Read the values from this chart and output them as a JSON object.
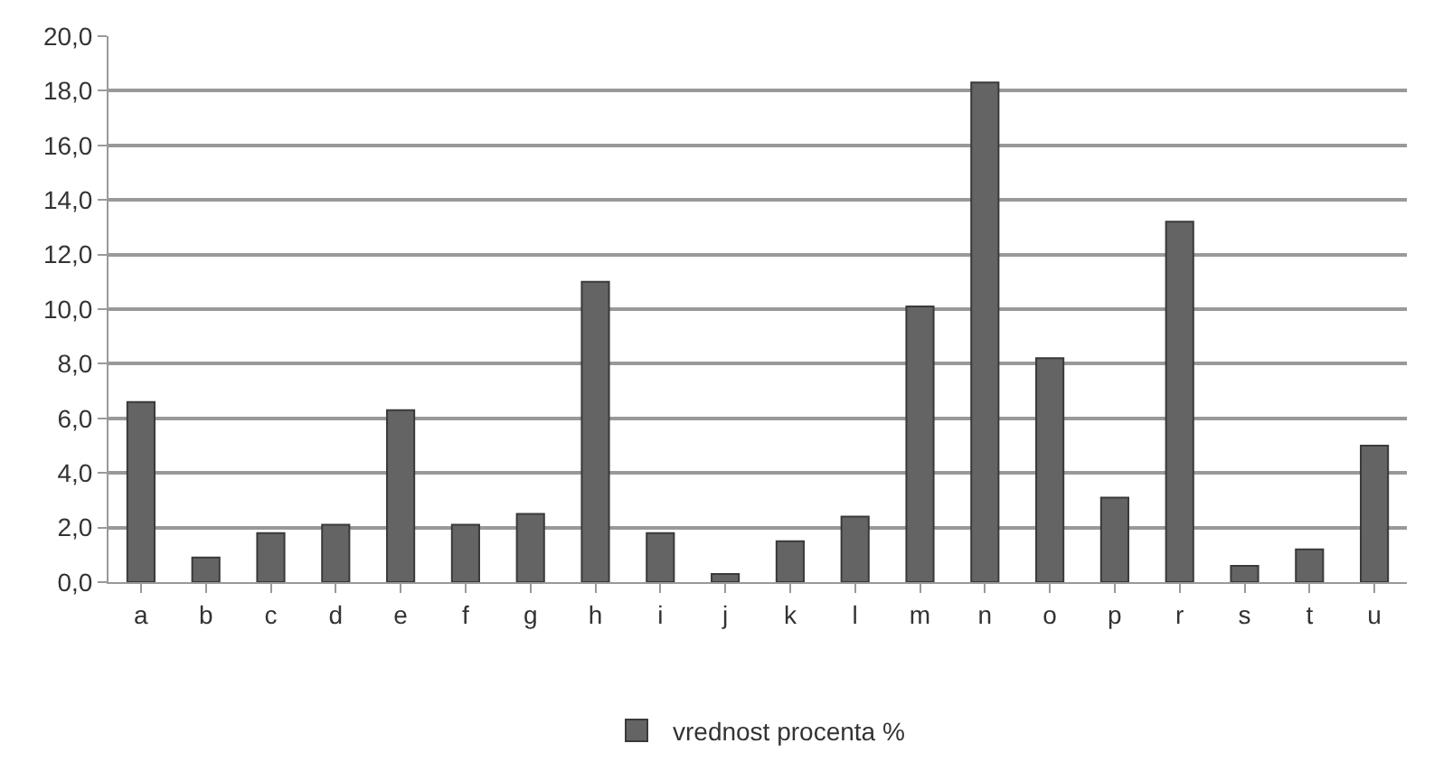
{
  "chart_data": {
    "type": "bar",
    "categories": [
      "a",
      "b",
      "c",
      "d",
      "e",
      "f",
      "g",
      "h",
      "i",
      "j",
      "k",
      "l",
      "m",
      "n",
      "o",
      "p",
      "r",
      "s",
      "t",
      "u"
    ],
    "series": [
      {
        "name": "vrednost procenta %",
        "color": "#646464",
        "values": [
          6.6,
          0.9,
          1.8,
          2.1,
          6.3,
          2.1,
          2.5,
          11.0,
          1.8,
          0.3,
          1.5,
          2.4,
          10.1,
          18.3,
          8.2,
          3.1,
          13.2,
          0.6,
          1.2,
          5.0
        ]
      }
    ],
    "ylim": [
      0,
      20
    ],
    "yticks": [
      {
        "value": 0,
        "label": "0,0"
      },
      {
        "value": 2,
        "label": "2,0"
      },
      {
        "value": 4,
        "label": "4,0"
      },
      {
        "value": 6,
        "label": "6,0"
      },
      {
        "value": 8,
        "label": "8,0"
      },
      {
        "value": 10,
        "label": "10,0"
      },
      {
        "value": 12,
        "label": "12,0"
      },
      {
        "value": 14,
        "label": "14,0"
      },
      {
        "value": 16,
        "label": "16,0"
      },
      {
        "value": 18,
        "label": "18,0"
      },
      {
        "value": 20,
        "label": "20,0"
      }
    ],
    "grid": "y",
    "legend": "bottom"
  }
}
